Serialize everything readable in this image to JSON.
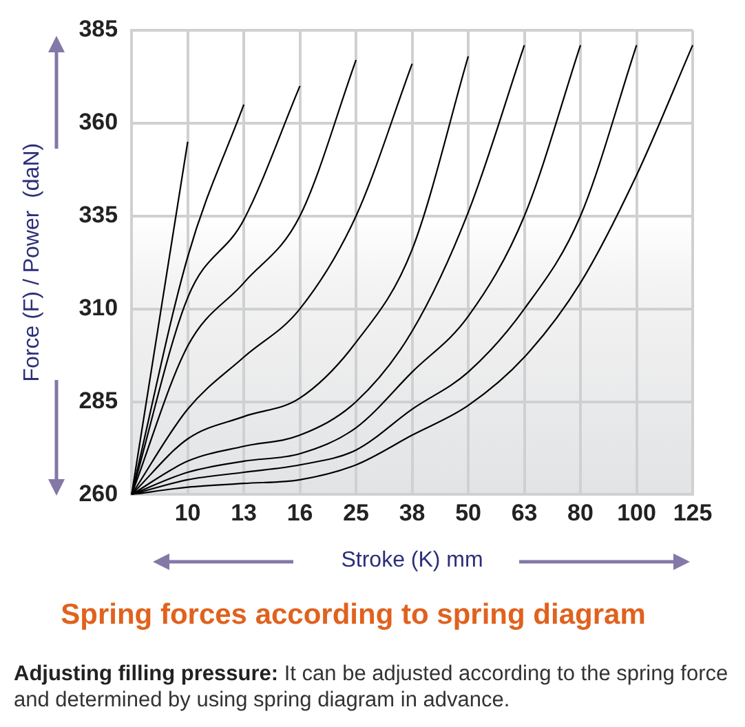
{
  "chart_data": {
    "type": "line",
    "title": "Spring forces according to spring diagram",
    "xlabel": "Stroke (K) mm",
    "ylabel": "Force (F) / Power  (daN)",
    "annotations": [
      "Adjusting filling pressure: It can be adjusted according to the spring force and determined by using spring diagram in advance."
    ],
    "categories": [
      null,
      "10",
      "13",
      "16",
      "25",
      "38",
      "50",
      "63",
      "80",
      "100",
      "125"
    ],
    "ylim": [
      260,
      385
    ],
    "yticks": [
      260,
      285,
      310,
      335,
      360,
      385
    ],
    "grid": true,
    "marker": "none",
    "line_style": "solid",
    "series": [
      {
        "color": "#000000",
        "values": [
          260,
          355,
          null,
          null,
          null,
          null,
          null,
          null,
          null,
          null,
          null
        ]
      },
      {
        "color": "#000000",
        "values": [
          260,
          324,
          365,
          null,
          null,
          null,
          null,
          null,
          null,
          null,
          null
        ]
      },
      {
        "color": "#000000",
        "values": [
          260,
          313,
          334,
          370,
          null,
          null,
          null,
          null,
          null,
          null,
          null
        ]
      },
      {
        "color": "#000000",
        "values": [
          260,
          300,
          317,
          335,
          377,
          null,
          null,
          null,
          null,
          null,
          null
        ]
      },
      {
        "color": "#000000",
        "values": [
          260,
          283,
          297,
          310,
          335,
          376,
          null,
          null,
          null,
          null,
          null
        ]
      },
      {
        "color": "#000000",
        "values": [
          260,
          275,
          281,
          286,
          301,
          326,
          378,
          null,
          null,
          null,
          null
        ]
      },
      {
        "color": "#000000",
        "values": [
          260,
          269,
          273,
          276,
          285,
          304,
          336,
          381,
          null,
          null,
          null
        ]
      },
      {
        "color": "#000000",
        "values": [
          260,
          266,
          269,
          271,
          278,
          293,
          308,
          335,
          381,
          null,
          null
        ]
      },
      {
        "color": "#000000",
        "values": [
          260,
          264,
          266,
          268,
          272,
          283,
          293,
          310,
          335,
          381,
          null
        ]
      },
      {
        "color": "#000000",
        "values": [
          260,
          262,
          263,
          264,
          268,
          276,
          284,
          297,
          317,
          346,
          381
        ]
      }
    ]
  }
}
